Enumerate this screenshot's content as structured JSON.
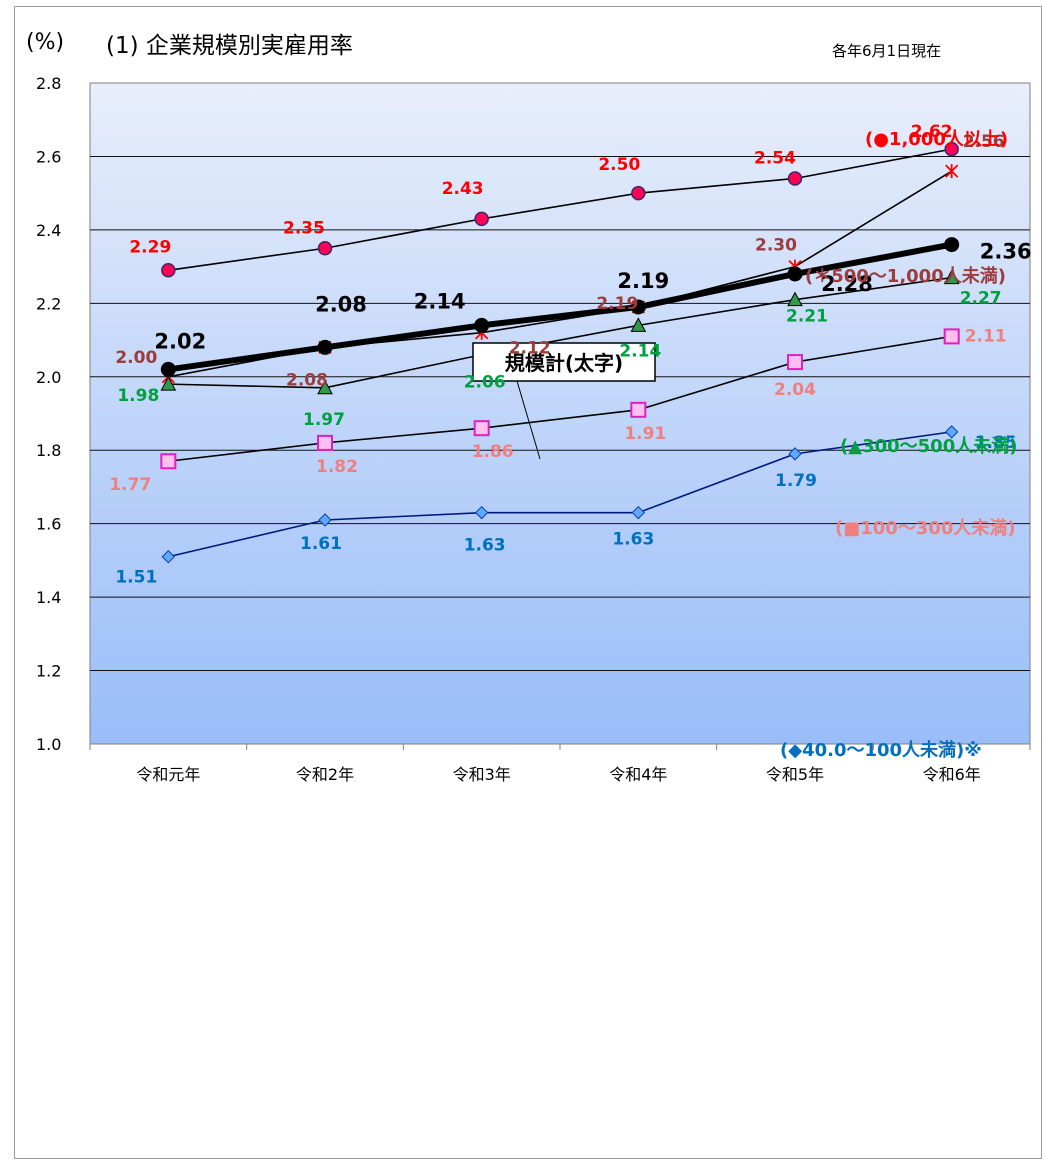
{
  "chart_data": {
    "type": "line",
    "unit_label": "(%)",
    "title": "(1) 企業規模別実雇用率",
    "subtitle": "各年6月1日現在",
    "categories": [
      "令和元年",
      "令和2年",
      "令和3年",
      "令和4年",
      "令和5年",
      "令和6年"
    ],
    "ylim": [
      1.0,
      2.8
    ],
    "yticks": [
      "1.0",
      "1.2",
      "1.4",
      "1.6",
      "1.8",
      "2.0",
      "2.2",
      "2.4",
      "2.6",
      "2.8"
    ],
    "grid": true,
    "callout": "規模計(太字)",
    "series": [
      {
        "name": "(●1,000人以上)",
        "values": [
          2.29,
          2.35,
          2.43,
          2.5,
          2.54,
          2.62
        ],
        "labels": [
          "2.29",
          "2.35",
          "2.43",
          "2.50",
          "2.54",
          "2.62"
        ],
        "color": "#ff0000",
        "marker": "circle",
        "marker_fill": "#ff0055",
        "line_color": "#000000"
      },
      {
        "name": "(＊500～1,000人未満)",
        "values": [
          2.0,
          2.08,
          2.12,
          2.19,
          2.3,
          2.56
        ],
        "labels": [
          "2.00",
          "2.08",
          "2.12",
          "2.19",
          "2.30",
          "2.56"
        ],
        "color": "#9b3d3d",
        "marker": "star",
        "marker_fill": "#ff0000",
        "line_color": "#000000"
      },
      {
        "name": "(▲300～500人未満)",
        "values": [
          1.98,
          1.97,
          2.06,
          2.14,
          2.21,
          2.27
        ],
        "labels": [
          "1.98",
          "1.97",
          "2.06",
          "2.14",
          "2.21",
          "2.27"
        ],
        "color": "#00a040",
        "marker": "triangle",
        "marker_fill": "#2e9a4a",
        "line_color": "#000000"
      },
      {
        "name": "(■100～300人未満)",
        "values": [
          1.77,
          1.82,
          1.86,
          1.91,
          2.04,
          2.11
        ],
        "labels": [
          "1.77",
          "1.82",
          "1.86",
          "1.91",
          "2.04",
          "2.11"
        ],
        "color": "#f08080",
        "marker": "square",
        "marker_fill": "#ffc0ee",
        "line_color": "#000000"
      },
      {
        "name": "(◆40.0～100人未満)※",
        "values": [
          1.51,
          1.61,
          1.63,
          1.63,
          1.79,
          1.85
        ],
        "labels": [
          "1.51",
          "1.61",
          "1.63",
          "1.63",
          "1.79",
          "1.85"
        ],
        "color": "#0070c0",
        "marker": "diamond",
        "marker_fill": "#5fa8ff",
        "line_color": "#001a80"
      },
      {
        "name": "規模計",
        "values": [
          2.02,
          2.08,
          2.14,
          2.19,
          2.28,
          2.36
        ],
        "labels": [
          "2.02",
          "2.08",
          "2.14",
          "2.19",
          "2.28",
          "2.36"
        ],
        "color": "#000000",
        "marker": "dot",
        "marker_fill": "#000000",
        "line_color": "#000000",
        "bold": true
      }
    ]
  }
}
